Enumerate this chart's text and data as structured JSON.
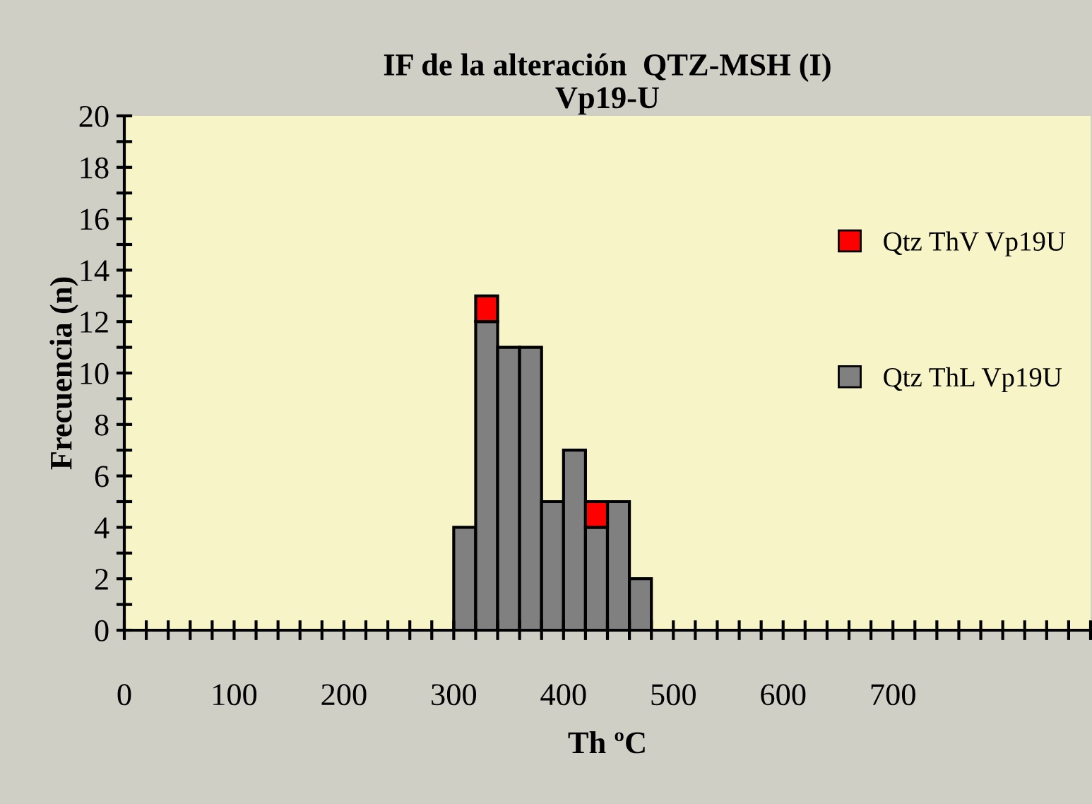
{
  "chart_data": {
    "type": "bar",
    "title": "IF de la alteración  QTZ-MSH (I)\nVp19-U",
    "xlabel": "Th ºC",
    "ylabel": "Frecuencia (n)",
    "x": [
      310,
      330,
      350,
      370,
      390,
      410,
      430,
      450,
      470
    ],
    "stacked": true,
    "series": [
      {
        "name": "Qtz ThL Vp19U",
        "color": "#808080",
        "values": [
          4,
          12,
          11,
          11,
          5,
          7,
          4,
          5,
          2
        ]
      },
      {
        "name": "Qtz ThV Vp19U",
        "color": "#ff0000",
        "values": [
          null,
          1,
          null,
          null,
          null,
          null,
          1,
          null,
          null
        ]
      }
    ],
    "xlim": [
      0,
      880
    ],
    "xticks": [
      0,
      {
        "value": 20,
        "label": null
      },
      {
        "value": 40,
        "label": null
      },
      {
        "value": 60,
        "label": null
      },
      {
        "value": 80,
        "label": null
      },
      100,
      {
        "value": 120,
        "label": null
      },
      {
        "value": 140,
        "label": null
      },
      {
        "value": 160,
        "label": null
      },
      {
        "value": 180,
        "label": null
      },
      200,
      {
        "value": 220,
        "label": null
      },
      {
        "value": 240,
        "label": null
      },
      {
        "value": 260,
        "label": null
      },
      {
        "value": 280,
        "label": null
      },
      300,
      {
        "value": 320,
        "label": null
      },
      {
        "value": 340,
        "label": null
      },
      {
        "value": 360,
        "label": null
      },
      {
        "value": 380,
        "label": null
      },
      400,
      {
        "value": 420,
        "label": null
      },
      {
        "value": 440,
        "label": null
      },
      {
        "value": 460,
        "label": null
      },
      {
        "value": 480,
        "label": null
      },
      500,
      {
        "value": 520,
        "label": null
      },
      {
        "value": 540,
        "label": null
      },
      {
        "value": 560,
        "label": null
      },
      {
        "value": 580,
        "label": null
      },
      600,
      {
        "value": 620,
        "label": null
      },
      {
        "value": 640,
        "label": null
      },
      {
        "value": 660,
        "label": null
      },
      {
        "value": 680,
        "label": null
      },
      700,
      {
        "value": 720,
        "label": null
      },
      {
        "value": 740,
        "label": null
      },
      {
        "value": 760,
        "label": null
      },
      {
        "value": 780,
        "label": null
      },
      {
        "value": 800,
        "label": null
      },
      {
        "value": 820,
        "label": null
      },
      {
        "value": 840,
        "label": null
      },
      {
        "value": 860,
        "label": null
      },
      {
        "value": 880,
        "label": null
      }
    ],
    "ylim": [
      0,
      20
    ],
    "yticks": [
      0,
      {
        "value": 1,
        "label": null
      },
      2,
      {
        "value": 3,
        "label": null
      },
      4,
      {
        "value": 5,
        "label": null
      },
      6,
      {
        "value": 7,
        "label": null
      },
      8,
      {
        "value": 9,
        "label": null
      },
      10,
      {
        "value": 11,
        "label": null
      },
      12,
      {
        "value": 13,
        "label": null
      },
      14,
      {
        "value": 15,
        "label": null
      },
      16,
      {
        "value": 17,
        "label": null
      },
      18,
      {
        "value": 19,
        "label": null
      },
      20
    ],
    "legend": "right",
    "grid": false
  }
}
